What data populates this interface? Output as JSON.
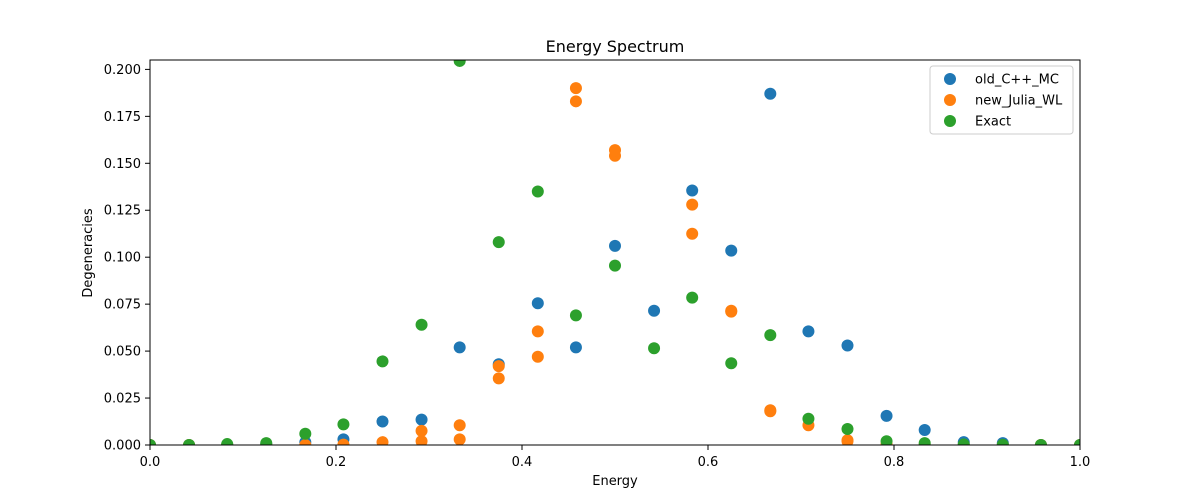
{
  "chart_data": {
    "type": "scatter",
    "title": "Energy Spectrum",
    "xlabel": "Energy",
    "ylabel": "Degeneracies",
    "xlim": [
      0,
      1
    ],
    "ylim": [
      0,
      0.205
    ],
    "x_ticks": [
      {
        "value": 0.0,
        "label": "0.0"
      },
      {
        "value": 0.2,
        "label": "0.2"
      },
      {
        "value": 0.4,
        "label": "0.4"
      },
      {
        "value": 0.6,
        "label": "0.6"
      },
      {
        "value": 0.8,
        "label": "0.8"
      },
      {
        "value": 1.0,
        "label": "1.0"
      }
    ],
    "y_ticks": [
      {
        "value": 0.0,
        "label": "0.000"
      },
      {
        "value": 0.025,
        "label": "0.025"
      },
      {
        "value": 0.05,
        "label": "0.050"
      },
      {
        "value": 0.075,
        "label": "0.075"
      },
      {
        "value": 0.1,
        "label": "0.100"
      },
      {
        "value": 0.125,
        "label": "0.125"
      },
      {
        "value": 0.15,
        "label": "0.150"
      },
      {
        "value": 0.175,
        "label": "0.175"
      },
      {
        "value": 0.2,
        "label": "0.200"
      }
    ],
    "grid": false,
    "legend": {
      "position": "top-right"
    },
    "series": [
      {
        "name": "old_C++_MC",
        "color": "#1f77b4",
        "points": [
          [
            0.0,
            0.0
          ],
          [
            0.042,
            0.0
          ],
          [
            0.083,
            0.0
          ],
          [
            0.125,
            0.0005
          ],
          [
            0.167,
            0.0015
          ],
          [
            0.208,
            0.003
          ],
          [
            0.25,
            0.0125
          ],
          [
            0.292,
            0.0135
          ],
          [
            0.333,
            0.052
          ],
          [
            0.375,
            0.043
          ],
          [
            0.417,
            0.0755
          ],
          [
            0.458,
            0.052
          ],
          [
            0.5,
            0.106
          ],
          [
            0.542,
            0.0715
          ],
          [
            0.583,
            0.1355
          ],
          [
            0.625,
            0.1035
          ],
          [
            0.667,
            0.187
          ],
          [
            0.708,
            0.0605
          ],
          [
            0.75,
            0.053
          ],
          [
            0.792,
            0.0155
          ],
          [
            0.833,
            0.008
          ],
          [
            0.875,
            0.0015
          ],
          [
            0.917,
            0.001
          ],
          [
            0.958,
            0.0
          ],
          [
            1.0,
            0.0
          ]
        ]
      },
      {
        "name": "new_Julia_WL",
        "color": "#ff7f0e",
        "points": [
          [
            0.0,
            0.0
          ],
          [
            0.042,
            0.0
          ],
          [
            0.083,
            0.0
          ],
          [
            0.125,
            0.0
          ],
          [
            0.167,
            0.0
          ],
          [
            0.208,
            0.0002
          ],
          [
            0.25,
            0.0015
          ],
          [
            0.292,
            0.002
          ],
          [
            0.292,
            0.0075
          ],
          [
            0.333,
            0.003
          ],
          [
            0.333,
            0.0105
          ],
          [
            0.375,
            0.0355
          ],
          [
            0.375,
            0.042
          ],
          [
            0.417,
            0.047
          ],
          [
            0.417,
            0.0605
          ],
          [
            0.458,
            0.183
          ],
          [
            0.458,
            0.19
          ],
          [
            0.5,
            0.154
          ],
          [
            0.5,
            0.157
          ],
          [
            0.583,
            0.1125
          ],
          [
            0.583,
            0.128
          ],
          [
            0.625,
            0.071
          ],
          [
            0.625,
            0.0715
          ],
          [
            0.667,
            0.018
          ],
          [
            0.667,
            0.0185
          ],
          [
            0.708,
            0.0105
          ],
          [
            0.75,
            0.002
          ],
          [
            0.75,
            0.0025
          ],
          [
            0.792,
            0.0005
          ],
          [
            0.833,
            0.0
          ],
          [
            0.875,
            0.0
          ],
          [
            0.917,
            0.0
          ],
          [
            0.958,
            0.0
          ],
          [
            1.0,
            0.0
          ]
        ]
      },
      {
        "name": "Exact",
        "color": "#2ca02c",
        "points": [
          [
            0.0,
            0.0
          ],
          [
            0.042,
            0.0
          ],
          [
            0.083,
            0.0005
          ],
          [
            0.125,
            0.001
          ],
          [
            0.167,
            0.006
          ],
          [
            0.208,
            0.011
          ],
          [
            0.25,
            0.0445
          ],
          [
            0.292,
            0.064
          ],
          [
            0.333,
            0.2045
          ],
          [
            0.375,
            0.108
          ],
          [
            0.417,
            0.135
          ],
          [
            0.458,
            0.069
          ],
          [
            0.5,
            0.0955
          ],
          [
            0.542,
            0.0515
          ],
          [
            0.583,
            0.0785
          ],
          [
            0.625,
            0.0435
          ],
          [
            0.667,
            0.0585
          ],
          [
            0.708,
            0.014
          ],
          [
            0.75,
            0.0085
          ],
          [
            0.792,
            0.002
          ],
          [
            0.833,
            0.001
          ],
          [
            0.875,
            0.0003
          ],
          [
            0.917,
            0.0001
          ],
          [
            0.958,
            0.0
          ],
          [
            1.0,
            0.0
          ]
        ]
      }
    ]
  }
}
